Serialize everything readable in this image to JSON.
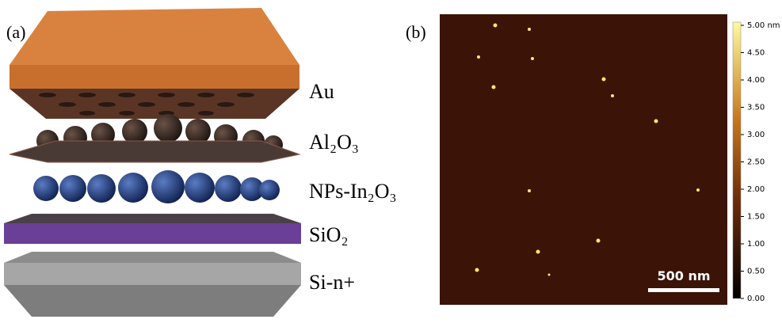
{
  "panel_a": {
    "label": "(a)",
    "layers": [
      "Au",
      "Al₂O₃",
      "NPs-In₂O₃",
      "SiO₂",
      "Si-n+"
    ]
  },
  "panel_b": {
    "label": "(b)",
    "scale_bar": "500 nm",
    "colorbar": {
      "ticks": [
        "5.00 nm",
        "4.50",
        "4.00",
        "3.50",
        "3.00",
        "2.50",
        "2.00",
        "1.50",
        "1.00",
        "0.50",
        "0.00"
      ]
    }
  }
}
